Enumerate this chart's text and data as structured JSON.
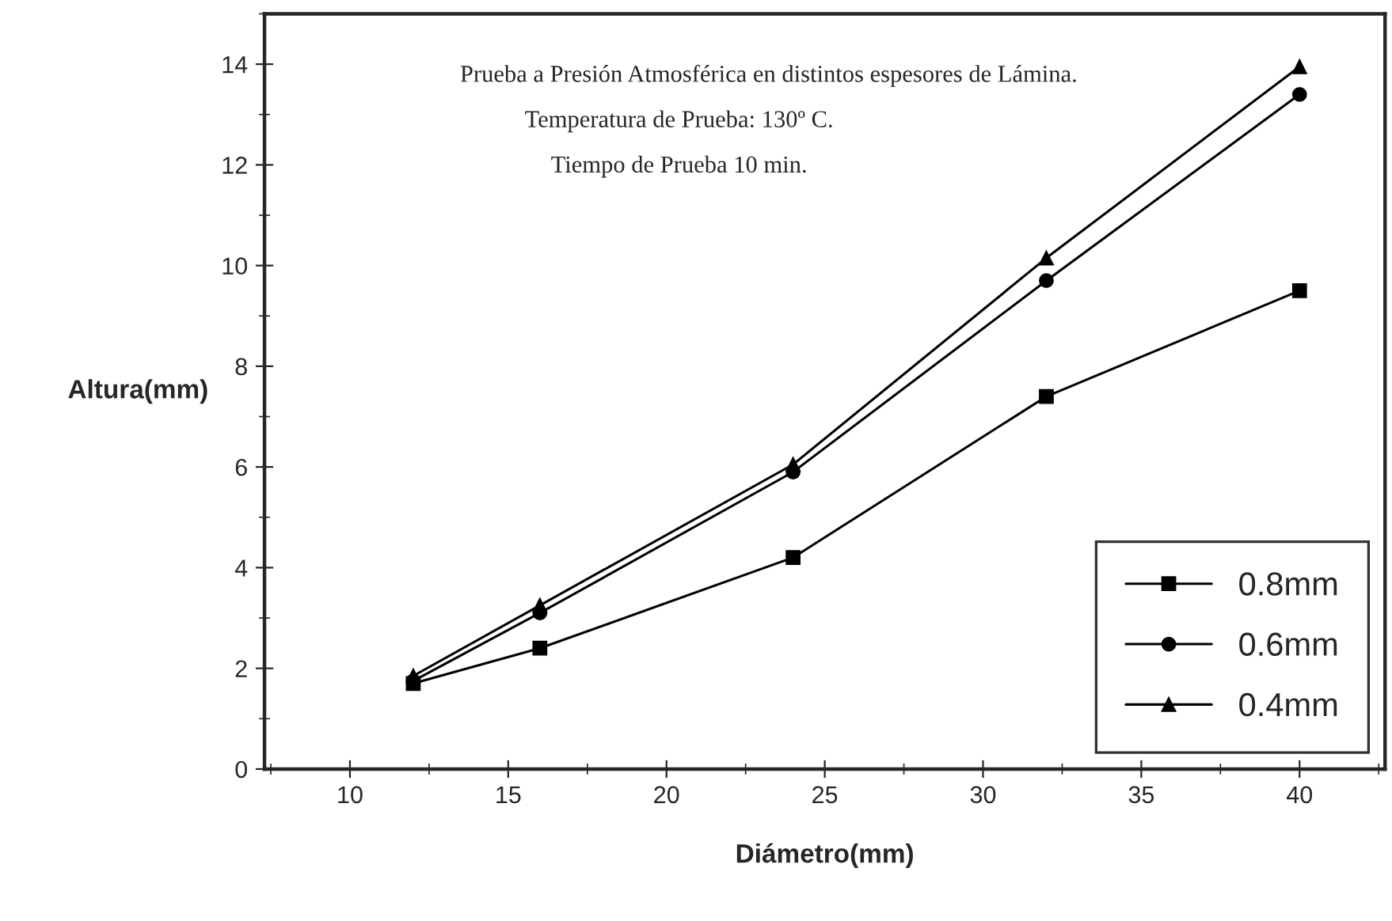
{
  "chart_data": {
    "type": "line",
    "xlabel": "Diámetro(mm)",
    "ylabel": "Altura(mm)",
    "annotations": [
      "Prueba a Presión Atmosférica en distintos espesores de Lámina.",
      "Temperatura de Prueba: 130º C.",
      "Tiempo de Prueba 10 min."
    ],
    "x": [
      12,
      16,
      24,
      32,
      40
    ],
    "series": [
      {
        "name": "0.8mm",
        "color": "#000000",
        "marker": "square",
        "values": [
          1.7,
          2.4,
          4.2,
          7.4,
          9.5
        ]
      },
      {
        "name": "0.6mm",
        "color": "#000000",
        "marker": "circle",
        "values": [
          1.75,
          3.1,
          5.9,
          9.7,
          13.4
        ]
      },
      {
        "name": "0.4mm",
        "color": "#000000",
        "marker": "triangle",
        "values": [
          1.85,
          3.25,
          6.05,
          10.15,
          13.95
        ]
      }
    ],
    "xlim": [
      7.3,
      42.7
    ],
    "ylim": [
      0,
      15
    ],
    "xticks": [
      10,
      15,
      20,
      25,
      30,
      35,
      40
    ],
    "yticks": [
      0,
      2,
      4,
      6,
      8,
      10,
      12,
      14
    ],
    "grid": false,
    "legend": "bottom right",
    "line_style": "solid"
  }
}
